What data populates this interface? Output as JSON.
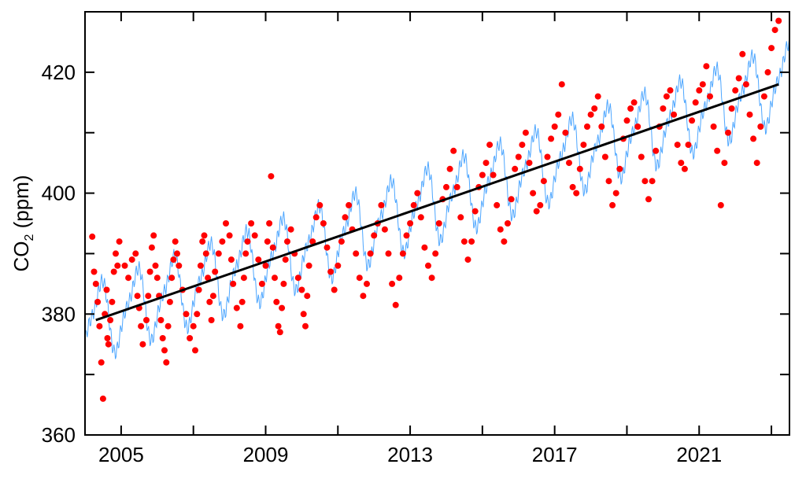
{
  "chart_data": {
    "type": "scatter",
    "title": "",
    "xlabel": "",
    "ylabel": "CO",
    "ylabel_subscript": "2",
    "ylabel_suffix": " (ppm)",
    "xlim": [
      2004.0,
      2023.5
    ],
    "ylim": [
      360,
      430
    ],
    "x_ticks": [
      2005,
      2009,
      2013,
      2017,
      2021
    ],
    "x_ticks_minor": [
      2007,
      2011,
      2015,
      2019,
      2023
    ],
    "y_ticks": [
      360,
      380,
      400,
      420
    ],
    "y_ticks_minor": [
      370,
      390,
      410
    ],
    "grid": false,
    "legend": "none",
    "series": [
      {
        "style": "scatter",
        "color": "#ff0000",
        "description_hint": "",
        "x": [
          2004.2,
          2004.25,
          2004.3,
          2004.35,
          2004.4,
          2004.45,
          2004.5,
          2004.55,
          2004.6,
          2004.62,
          2004.65,
          2004.7,
          2004.75,
          2004.8,
          2004.85,
          2004.9,
          2004.95,
          2005.1,
          2005.2,
          2005.3,
          2005.4,
          2005.45,
          2005.5,
          2005.55,
          2005.6,
          2005.7,
          2005.75,
          2005.8,
          2005.85,
          2005.9,
          2005.95,
          2006.0,
          2006.05,
          2006.1,
          2006.15,
          2006.2,
          2006.25,
          2006.3,
          2006.35,
          2006.4,
          2006.45,
          2006.5,
          2006.55,
          2006.6,
          2006.7,
          2006.8,
          2006.9,
          2007.0,
          2007.05,
          2007.1,
          2007.15,
          2007.2,
          2007.25,
          2007.3,
          2007.35,
          2007.4,
          2007.45,
          2007.5,
          2007.55,
          2007.6,
          2007.7,
          2007.8,
          2007.9,
          2008.0,
          2008.05,
          2008.1,
          2008.2,
          2008.3,
          2008.35,
          2008.4,
          2008.45,
          2008.5,
          2008.6,
          2008.7,
          2008.8,
          2008.9,
          2009.0,
          2009.05,
          2009.1,
          2009.15,
          2009.2,
          2009.25,
          2009.3,
          2009.35,
          2009.4,
          2009.45,
          2009.5,
          2009.55,
          2009.6,
          2009.7,
          2009.8,
          2009.9,
          2010.0,
          2010.05,
          2010.1,
          2010.15,
          2010.2,
          2010.3,
          2010.4,
          2010.5,
          2010.6,
          2010.7,
          2010.8,
          2010.9,
          2011.0,
          2011.1,
          2011.2,
          2011.3,
          2011.4,
          2011.5,
          2011.6,
          2011.7,
          2011.8,
          2011.9,
          2012.0,
          2012.1,
          2012.2,
          2012.3,
          2012.4,
          2012.5,
          2012.6,
          2012.7,
          2012.8,
          2012.9,
          2013.0,
          2013.1,
          2013.2,
          2013.3,
          2013.4,
          2013.5,
          2013.6,
          2013.7,
          2013.8,
          2013.9,
          2014.0,
          2014.1,
          2014.2,
          2014.3,
          2014.4,
          2014.5,
          2014.6,
          2014.7,
          2014.8,
          2014.9,
          2015.0,
          2015.1,
          2015.2,
          2015.3,
          2015.4,
          2015.5,
          2015.6,
          2015.7,
          2015.8,
          2015.9,
          2016.0,
          2016.1,
          2016.2,
          2016.3,
          2016.4,
          2016.5,
          2016.6,
          2016.7,
          2016.8,
          2016.9,
          2017.0,
          2017.1,
          2017.2,
          2017.3,
          2017.4,
          2017.5,
          2017.6,
          2017.7,
          2017.8,
          2017.9,
          2018.0,
          2018.1,
          2018.2,
          2018.3,
          2018.4,
          2018.5,
          2018.6,
          2018.7,
          2018.8,
          2018.9,
          2019.0,
          2019.1,
          2019.2,
          2019.3,
          2019.4,
          2019.5,
          2019.6,
          2019.7,
          2019.8,
          2019.9,
          2020.0,
          2020.1,
          2020.2,
          2020.3,
          2020.4,
          2020.5,
          2020.6,
          2020.7,
          2020.8,
          2020.9,
          2021.0,
          2021.1,
          2021.2,
          2021.3,
          2021.4,
          2021.5,
          2021.6,
          2021.7,
          2021.8,
          2021.9,
          2022.0,
          2022.1,
          2022.2,
          2022.3,
          2022.4,
          2022.5,
          2022.6,
          2022.7,
          2022.8,
          2022.9,
          2023.0,
          2023.1,
          2023.2
        ],
        "y": [
          392.8,
          387,
          385,
          382,
          378,
          372,
          366,
          380,
          384,
          376,
          375,
          379,
          382,
          387,
          390,
          388,
          392,
          388,
          386,
          389,
          390,
          383,
          381,
          378,
          375,
          379,
          383,
          387,
          391,
          393,
          388,
          386,
          383,
          379,
          376,
          374,
          372,
          378,
          382,
          386,
          389,
          392,
          390,
          388,
          384,
          380,
          376,
          378,
          374,
          380,
          384,
          388,
          392,
          393,
          390,
          386,
          382,
          379,
          383,
          387,
          390,
          392,
          395,
          393,
          389,
          385,
          381,
          378,
          382,
          386,
          390,
          392,
          395,
          393,
          389,
          385,
          388,
          392,
          395,
          402.8,
          391,
          386,
          382,
          378,
          377,
          381,
          385,
          389,
          392,
          394,
          390,
          386,
          384,
          380,
          378,
          383,
          388,
          392,
          396,
          398,
          395,
          391,
          387,
          384,
          388,
          392,
          396,
          398,
          394,
          390,
          386,
          383,
          385,
          390,
          393,
          395,
          398,
          394,
          390,
          385,
          381.5,
          386,
          390,
          393,
          395,
          398,
          400,
          396,
          391,
          388,
          386,
          390,
          395,
          399,
          401,
          404,
          407,
          401,
          396,
          392,
          389,
          392,
          397,
          401,
          403,
          405,
          408,
          403,
          398,
          394,
          392,
          395,
          399,
          404,
          406,
          408,
          410,
          405,
          400,
          397,
          398,
          402,
          406,
          409,
          411,
          413,
          418,
          410,
          405,
          401,
          400,
          404,
          408,
          411,
          413,
          414,
          416,
          411,
          406,
          402,
          398,
          400,
          404,
          409,
          412,
          414,
          415,
          411,
          406,
          402,
          399,
          402,
          407,
          411,
          414,
          416,
          417,
          413,
          408,
          405,
          404,
          408,
          412,
          415,
          417,
          418,
          421,
          416,
          411,
          407,
          398,
          405,
          410,
          414,
          417,
          419,
          423,
          418,
          413,
          409,
          405,
          411,
          416,
          420,
          424,
          427,
          428.5
        ]
      },
      {
        "style": "line",
        "color": "#4da6ff",
        "x": [],
        "y": []
      },
      {
        "style": "trend",
        "color": "#000000",
        "x": [
          2004.3,
          2023.2
        ],
        "y": [
          379,
          418
        ]
      }
    ]
  }
}
